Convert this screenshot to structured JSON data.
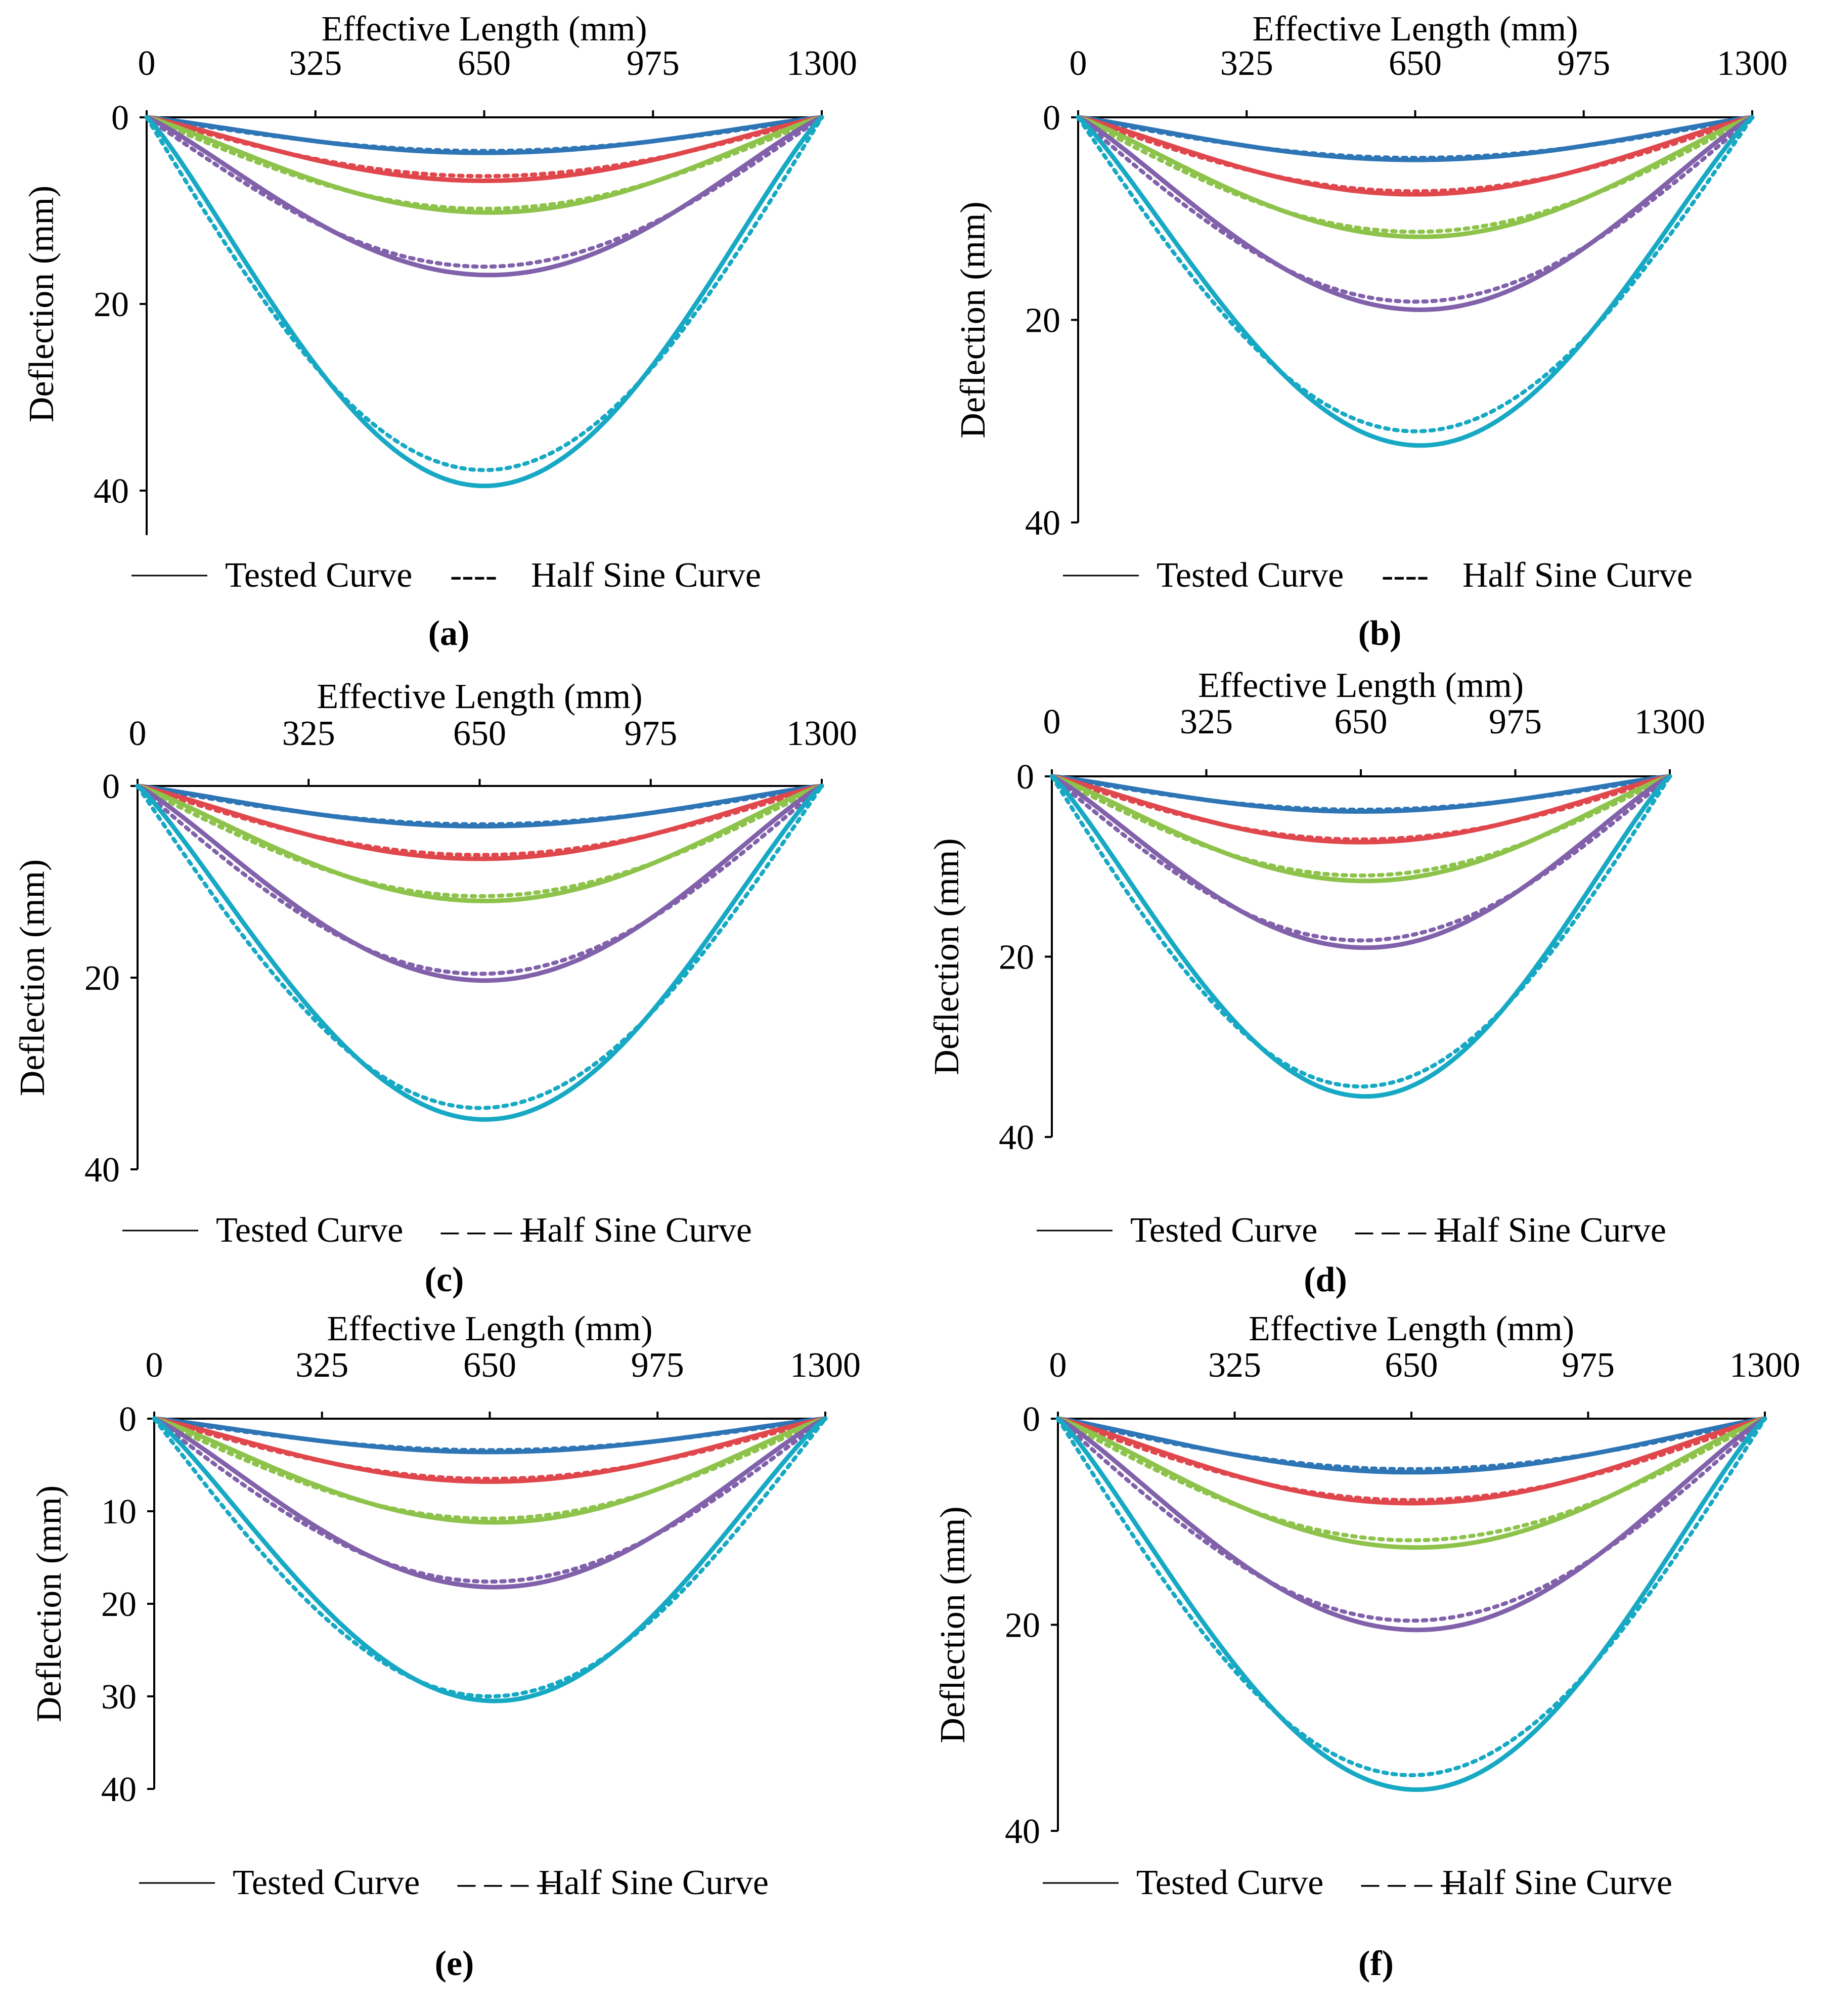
{
  "colors": {
    "series": [
      "#2E75B6",
      "#E0474C",
      "#8DC34A",
      "#8161AA",
      "#17A9C4"
    ],
    "axis": "#000000"
  },
  "common": {
    "xlabel": "Effective Length (mm)",
    "ylabel": "Deflection (mm)",
    "legend_tested": "Tested Curve",
    "legend_sine": "Half Sine Curve",
    "legend_dash_short": "----",
    "legend_dash_long": "– – – –"
  },
  "chart_data": [
    {
      "label": "(a)",
      "type": "line",
      "title": "",
      "xlabel": "Effective Length (mm)",
      "ylabel": "Deflection (mm)",
      "x_ticks": [
        0,
        325,
        650,
        975,
        1300
      ],
      "xlim": [
        0,
        1300
      ],
      "y_ticks": [
        0,
        20,
        40
      ],
      "ylim": [
        0,
        45
      ],
      "y_inverted": true,
      "legend": [
        "Tested Curve",
        "Half Sine Curve"
      ],
      "legend_style": "short",
      "series": [
        {
          "name": "Tested Curve 1",
          "peak": 3.8,
          "peak_x": 650
        },
        {
          "name": "Tested Curve 2",
          "peak": 6.8,
          "peak_x": 650
        },
        {
          "name": "Tested Curve 3",
          "peak": 10.2,
          "peak_x": 660
        },
        {
          "name": "Tested Curve 4",
          "peak": 16.9,
          "peak_x": 660
        },
        {
          "name": "Tested Curve 5",
          "peak": 39.5,
          "peak_x": 650
        }
      ],
      "half_sine": [
        {
          "name": "Half Sine Curve 1",
          "peak": 3.6
        },
        {
          "name": "Half Sine Curve 2",
          "peak": 6.3
        },
        {
          "name": "Half Sine Curve 3",
          "peak": 9.8
        },
        {
          "name": "Half Sine Curve 4",
          "peak": 16.0
        },
        {
          "name": "Half Sine Curve 5",
          "peak": 37.8
        }
      ]
    },
    {
      "label": "(b)",
      "type": "line",
      "title": "",
      "xlabel": "Effective Length (mm)",
      "ylabel": "Deflection (mm)",
      "x_ticks": [
        0,
        325,
        650,
        975,
        1300
      ],
      "xlim": [
        0,
        1300
      ],
      "y_ticks": [
        0,
        20,
        40
      ],
      "ylim": [
        0,
        40
      ],
      "y_inverted": true,
      "legend": [
        "Tested Curve",
        "Half Sine Curve"
      ],
      "legend_style": "short",
      "series": [
        {
          "name": "Tested Curve 1",
          "peak": 4.2,
          "peak_x": 650
        },
        {
          "name": "Tested Curve 2",
          "peak": 7.6,
          "peak_x": 650
        },
        {
          "name": "Tested Curve 3",
          "peak": 11.8,
          "peak_x": 660
        },
        {
          "name": "Tested Curve 4",
          "peak": 19.0,
          "peak_x": 660
        },
        {
          "name": "Tested Curve 5",
          "peak": 32.4,
          "peak_x": 660
        }
      ],
      "half_sine": [
        {
          "name": "Half Sine Curve 1",
          "peak": 4.0
        },
        {
          "name": "Half Sine Curve 2",
          "peak": 7.3
        },
        {
          "name": "Half Sine Curve 3",
          "peak": 11.3
        },
        {
          "name": "Half Sine Curve 4",
          "peak": 18.2
        },
        {
          "name": "Half Sine Curve 5",
          "peak": 31.0
        }
      ]
    },
    {
      "label": "(c)",
      "type": "line",
      "title": "",
      "xlabel": "Effective Length (mm)",
      "ylabel": "Deflection (mm)",
      "x_ticks": [
        0,
        325,
        650,
        975,
        1300
      ],
      "xlim": [
        0,
        1300
      ],
      "y_ticks": [
        0,
        20,
        40
      ],
      "ylim": [
        0,
        40
      ],
      "y_inverted": true,
      "legend": [
        "Tested Curve",
        "Half Sine Curve"
      ],
      "legend_style": "long",
      "series": [
        {
          "name": "Tested Curve 1",
          "peak": 4.2,
          "peak_x": 650
        },
        {
          "name": "Tested Curve 2",
          "peak": 7.6,
          "peak_x": 650
        },
        {
          "name": "Tested Curve 3",
          "peak": 12.0,
          "peak_x": 660
        },
        {
          "name": "Tested Curve 4",
          "peak": 20.3,
          "peak_x": 660
        },
        {
          "name": "Tested Curve 5",
          "peak": 34.8,
          "peak_x": 660
        }
      ],
      "half_sine": [
        {
          "name": "Half Sine Curve 1",
          "peak": 4.0
        },
        {
          "name": "Half Sine Curve 2",
          "peak": 7.2
        },
        {
          "name": "Half Sine Curve 3",
          "peak": 11.5
        },
        {
          "name": "Half Sine Curve 4",
          "peak": 19.6
        },
        {
          "name": "Half Sine Curve 5",
          "peak": 33.6
        }
      ]
    },
    {
      "label": "(d)",
      "type": "line",
      "title": "",
      "xlabel": "Effective Length (mm)",
      "ylabel": "Deflection (mm)",
      "x_ticks": [
        0,
        325,
        650,
        975,
        1300
      ],
      "xlim": [
        0,
        1300
      ],
      "y_ticks": [
        0,
        20,
        40
      ],
      "ylim": [
        0,
        40
      ],
      "y_inverted": true,
      "legend": [
        "Tested Curve",
        "Half Sine Curve"
      ],
      "legend_style": "long",
      "series": [
        {
          "name": "Tested Curve 1",
          "peak": 3.9,
          "peak_x": 650
        },
        {
          "name": "Tested Curve 2",
          "peak": 7.3,
          "peak_x": 650
        },
        {
          "name": "Tested Curve 3",
          "peak": 11.6,
          "peak_x": 660
        },
        {
          "name": "Tested Curve 4",
          "peak": 19.0,
          "peak_x": 660
        },
        {
          "name": "Tested Curve 5",
          "peak": 35.5,
          "peak_x": 660
        }
      ],
      "half_sine": [
        {
          "name": "Half Sine Curve 1",
          "peak": 3.7
        },
        {
          "name": "Half Sine Curve 2",
          "peak": 7.0
        },
        {
          "name": "Half Sine Curve 3",
          "peak": 11.0
        },
        {
          "name": "Half Sine Curve 4",
          "peak": 18.2
        },
        {
          "name": "Half Sine Curve 5",
          "peak": 34.4
        }
      ]
    },
    {
      "label": "(e)",
      "type": "line",
      "title": "",
      "xlabel": "Effective Length (mm)",
      "ylabel": "Deflection (mm)",
      "x_ticks": [
        0,
        325,
        650,
        975,
        1300
      ],
      "xlim": [
        0,
        1300
      ],
      "y_ticks": [
        0,
        10,
        20,
        30,
        40
      ],
      "ylim": [
        0,
        40
      ],
      "y_inverted": true,
      "legend": [
        "Tested Curve",
        "Half Sine Curve"
      ],
      "legend_style": "long",
      "series": [
        {
          "name": "Tested Curve 1",
          "peak": 3.6,
          "peak_x": 650
        },
        {
          "name": "Tested Curve 2",
          "peak": 6.8,
          "peak_x": 650
        },
        {
          "name": "Tested Curve 3",
          "peak": 11.2,
          "peak_x": 660
        },
        {
          "name": "Tested Curve 4",
          "peak": 18.2,
          "peak_x": 660
        },
        {
          "name": "Tested Curve 5",
          "peak": 30.5,
          "peak_x": 660
        }
      ],
      "half_sine": [
        {
          "name": "Half Sine Curve 1",
          "peak": 3.4
        },
        {
          "name": "Half Sine Curve 2",
          "peak": 6.5
        },
        {
          "name": "Half Sine Curve 3",
          "peak": 10.8
        },
        {
          "name": "Half Sine Curve 4",
          "peak": 17.6
        },
        {
          "name": "Half Sine Curve 5",
          "peak": 30.0
        }
      ]
    },
    {
      "label": "(f)",
      "type": "line",
      "title": "",
      "xlabel": "Effective Length (mm)",
      "ylabel": "Deflection (mm)",
      "x_ticks": [
        0,
        325,
        650,
        975,
        1300
      ],
      "xlim": [
        0,
        1300
      ],
      "y_ticks": [
        0,
        20,
        40
      ],
      "ylim": [
        0,
        40
      ],
      "y_inverted": true,
      "legend": [
        "Tested Curve",
        "Half Sine Curve"
      ],
      "legend_style": "long",
      "series": [
        {
          "name": "Tested Curve 1",
          "peak": 5.2,
          "peak_x": 650
        },
        {
          "name": "Tested Curve 2",
          "peak": 8.2,
          "peak_x": 650
        },
        {
          "name": "Tested Curve 3",
          "peak": 12.5,
          "peak_x": 660
        },
        {
          "name": "Tested Curve 4",
          "peak": 20.5,
          "peak_x": 660
        },
        {
          "name": "Tested Curve 5",
          "peak": 36.0,
          "peak_x": 660
        }
      ],
      "half_sine": [
        {
          "name": "Half Sine Curve 1",
          "peak": 4.9
        },
        {
          "name": "Half Sine Curve 2",
          "peak": 7.9
        },
        {
          "name": "Half Sine Curve 3",
          "peak": 11.8
        },
        {
          "name": "Half Sine Curve 4",
          "peak": 19.6
        },
        {
          "name": "Half Sine Curve 5",
          "peak": 34.6
        }
      ]
    }
  ]
}
